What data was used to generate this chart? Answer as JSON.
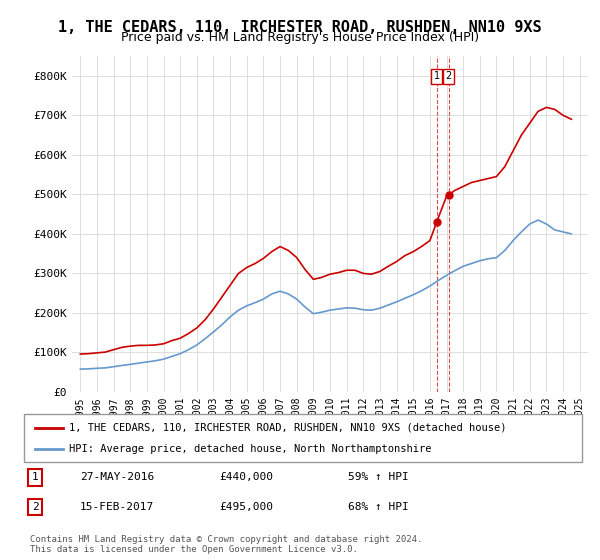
{
  "title": "1, THE CEDARS, 110, IRCHESTER ROAD, RUSHDEN, NN10 9XS",
  "subtitle": "Price paid vs. HM Land Registry's House Price Index (HPI)",
  "title_fontsize": 11,
  "subtitle_fontsize": 9,
  "red_label": "1, THE CEDARS, 110, IRCHESTER ROAD, RUSHDEN, NN10 9XS (detached house)",
  "blue_label": "HPI: Average price, detached house, North Northamptonshire",
  "transactions": [
    {
      "num": 1,
      "date": "27-MAY-2016",
      "price": "£440,000",
      "pct": "59% ↑ HPI",
      "year": 2016.41
    },
    {
      "num": 2,
      "date": "15-FEB-2017",
      "price": "£495,000",
      "pct": "68% ↑ HPI",
      "year": 2017.12
    }
  ],
  "footnote": "Contains HM Land Registry data © Crown copyright and database right 2024.\nThis data is licensed under the Open Government Licence v3.0.",
  "ylim": [
    0,
    850000
  ],
  "yticks": [
    0,
    100000,
    200000,
    300000,
    400000,
    500000,
    600000,
    700000,
    800000
  ],
  "ytick_labels": [
    "£0",
    "£100K",
    "£200K",
    "£300K",
    "£400K",
    "£500K",
    "£600K",
    "£700K",
    "£800K"
  ],
  "red_color": "#cc0000",
  "blue_color": "#6699cc",
  "grid_color": "#dddddd",
  "bg_color": "#ffffff",
  "red_years": [
    1995.0,
    1995.5,
    1996.0,
    1996.5,
    1997.0,
    1997.5,
    1998.0,
    1998.5,
    1999.0,
    1999.5,
    2000.0,
    2000.5,
    2001.0,
    2001.5,
    2002.0,
    2002.5,
    2003.0,
    2003.5,
    2004.0,
    2004.5,
    2005.0,
    2005.5,
    2006.0,
    2006.5,
    2007.0,
    2007.5,
    2008.0,
    2008.5,
    2009.0,
    2009.5,
    2010.0,
    2010.5,
    2011.0,
    2011.5,
    2012.0,
    2012.5,
    2013.0,
    2013.5,
    2014.0,
    2014.5,
    2015.0,
    2015.5,
    2016.0,
    2016.5,
    2017.0,
    2017.5,
    2018.0,
    2018.5,
    2019.0,
    2019.5,
    2020.0,
    2020.5,
    2021.0,
    2021.5,
    2022.0,
    2022.5,
    2023.0,
    2023.5,
    2024.0,
    2024.5
  ],
  "red_values": [
    96000,
    97000,
    99000,
    101000,
    107000,
    113000,
    116000,
    118000,
    118000,
    119000,
    122000,
    130000,
    136000,
    148000,
    162000,
    183000,
    210000,
    240000,
    270000,
    300000,
    315000,
    325000,
    338000,
    355000,
    368000,
    358000,
    340000,
    310000,
    285000,
    290000,
    298000,
    302000,
    308000,
    308000,
    300000,
    298000,
    305000,
    318000,
    330000,
    345000,
    355000,
    368000,
    383000,
    440000,
    495000,
    510000,
    520000,
    530000,
    535000,
    540000,
    545000,
    570000,
    610000,
    650000,
    680000,
    710000,
    720000,
    715000,
    700000,
    690000
  ],
  "blue_years": [
    1995.0,
    1995.5,
    1996.0,
    1996.5,
    1997.0,
    1997.5,
    1998.0,
    1998.5,
    1999.0,
    1999.5,
    2000.0,
    2000.5,
    2001.0,
    2001.5,
    2002.0,
    2002.5,
    2003.0,
    2003.5,
    2004.0,
    2004.5,
    2005.0,
    2005.5,
    2006.0,
    2006.5,
    2007.0,
    2007.5,
    2008.0,
    2008.5,
    2009.0,
    2009.5,
    2010.0,
    2010.5,
    2011.0,
    2011.5,
    2012.0,
    2012.5,
    2013.0,
    2013.5,
    2014.0,
    2014.5,
    2015.0,
    2015.5,
    2016.0,
    2016.5,
    2017.0,
    2017.5,
    2018.0,
    2018.5,
    2019.0,
    2019.5,
    2020.0,
    2020.5,
    2021.0,
    2021.5,
    2022.0,
    2022.5,
    2023.0,
    2023.5,
    2024.0,
    2024.5
  ],
  "blue_values": [
    58000,
    58500,
    60000,
    61000,
    64000,
    67000,
    70000,
    73000,
    76000,
    79000,
    83000,
    90000,
    97000,
    107000,
    119000,
    135000,
    152000,
    170000,
    190000,
    207000,
    218000,
    226000,
    235000,
    248000,
    255000,
    248000,
    235000,
    215000,
    198000,
    202000,
    207000,
    210000,
    213000,
    212000,
    208000,
    207000,
    212000,
    220000,
    228000,
    237000,
    246000,
    256000,
    268000,
    282000,
    295000,
    307000,
    318000,
    325000,
    332000,
    337000,
    340000,
    358000,
    383000,
    405000,
    425000,
    435000,
    425000,
    410000,
    405000,
    400000
  ],
  "xtick_years": [
    1995,
    1996,
    1997,
    1998,
    1999,
    2000,
    2001,
    2002,
    2003,
    2004,
    2005,
    2006,
    2007,
    2008,
    2009,
    2010,
    2011,
    2012,
    2013,
    2014,
    2015,
    2016,
    2017,
    2018,
    2019,
    2020,
    2021,
    2022,
    2023,
    2024,
    2025
  ]
}
